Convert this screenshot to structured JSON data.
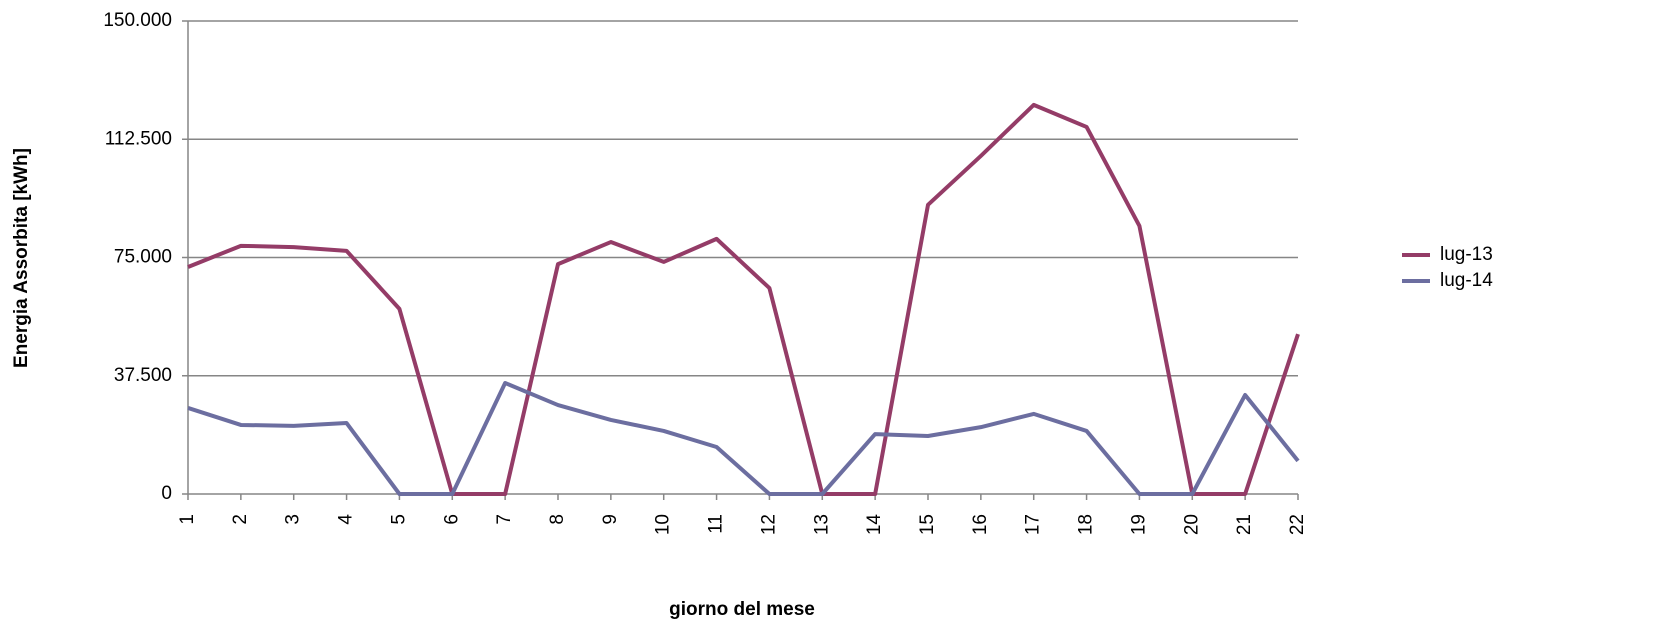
{
  "chart_data": {
    "type": "line",
    "x_label": "giorno del mese",
    "y_label": "Energia Assorbita [kWh]",
    "categories": [
      "1",
      "2",
      "3",
      "4",
      "5",
      "6",
      "7",
      "8",
      "9",
      "10",
      "11",
      "12",
      "13",
      "14",
      "15",
      "16",
      "17",
      "18",
      "19",
      "20",
      "21",
      "22"
    ],
    "series": [
      {
        "name": "lug-13",
        "color": "#943c67",
        "values": [
          72000,
          78700,
          78300,
          77100,
          58700,
          0,
          0,
          72900,
          79900,
          73600,
          80900,
          65300,
          0,
          0,
          91700,
          107200,
          123400,
          116400,
          85000,
          0,
          0,
          50700
        ]
      },
      {
        "name": "lug-14",
        "color": "#6c6ea0",
        "values": [
          27300,
          21900,
          21600,
          22500,
          0,
          0,
          35200,
          28200,
          23500,
          20000,
          14900,
          0,
          0,
          19000,
          18400,
          21200,
          25400,
          20000,
          0,
          0,
          31400,
          10500
        ]
      }
    ],
    "ylim": [
      0,
      150000
    ],
    "yticks": [
      0,
      {
        "value": 37500,
        "label": "37.500"
      },
      {
        "value": 75000,
        "label": "75.000"
      },
      {
        "value": 112500,
        "label": "112.500"
      },
      {
        "value": 150000,
        "label": "150.000"
      }
    ],
    "grid": true,
    "legend": "right"
  }
}
